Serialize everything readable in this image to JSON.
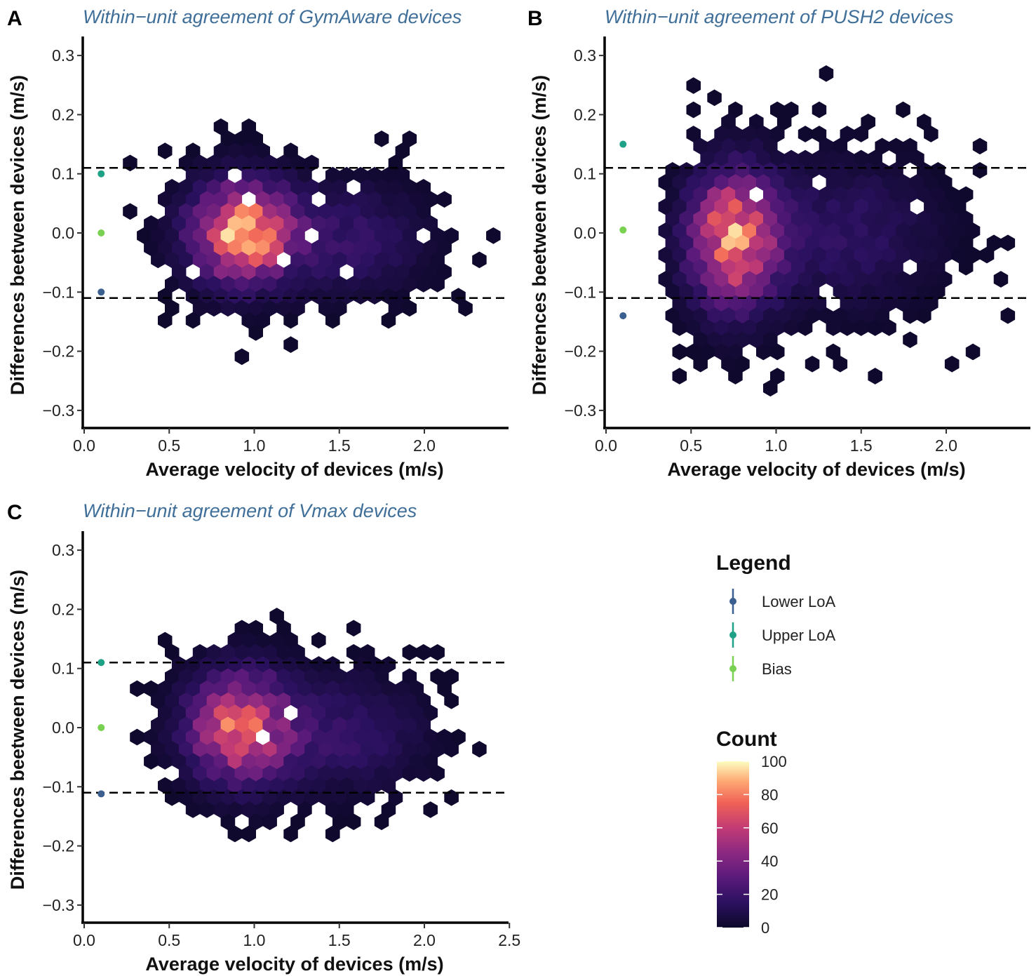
{
  "colors": {
    "title": "#3f6f99",
    "lower_loa": "#3b5f8f",
    "upper_loa": "#1fa187",
    "bias": "#79d151",
    "viridis_low": "#0d0829",
    "magma_high": "#fcfdbf"
  },
  "chart_data": [
    {
      "id": "A",
      "type": "heatmap",
      "subtype": "hexbin",
      "title": "Within−unit agreement of GymAware devices",
      "xlabel": "Average velocity of devices (m/s)",
      "ylabel": "Differences beetween devices (m/s)",
      "xlim": [
        0.0,
        2.5
      ],
      "ylim": [
        -0.32,
        0.32
      ],
      "x_ticks": [
        "0.0",
        "0.5",
        "1.0",
        "1.5",
        "2.0"
      ],
      "y_ticks": [
        "−0.3",
        "−0.2",
        "−0.1",
        "0.0",
        "0.1",
        "0.2",
        "0.3"
      ],
      "x_tick_values": [
        0.0,
        0.5,
        1.0,
        1.5,
        2.0
      ],
      "y_tick_values": [
        -0.3,
        -0.2,
        -0.1,
        0.0,
        0.1,
        0.2,
        0.3
      ],
      "dashed_lines": [
        0.11,
        -0.11
      ],
      "points": {
        "lower_loa": -0.1,
        "upper_loa": 0.1,
        "bias": 0.0,
        "x": 0.1
      },
      "density": {
        "x_min": 0.27,
        "x_max": 2.42,
        "y_min": -0.22,
        "y_max": 0.2,
        "clusters": [
          {
            "x": 0.93,
            "y": 0.0,
            "sx": 0.2,
            "sy": 0.055,
            "peak": 85
          },
          {
            "x": 1.55,
            "y": -0.01,
            "sx": 0.3,
            "sy": 0.06,
            "peak": 18
          }
        ]
      }
    },
    {
      "id": "B",
      "type": "heatmap",
      "subtype": "hexbin",
      "title": "Within−unit agreement of PUSH2 devices",
      "xlabel": "Average velocity of devices (m/s)",
      "ylabel": "Differences beetween devices (m/s)",
      "xlim": [
        0.0,
        2.5
      ],
      "ylim": [
        -0.32,
        0.32
      ],
      "x_ticks": [
        "0.0",
        "0.5",
        "1.0",
        "1.5",
        "2.0"
      ],
      "y_ticks": [
        "−0.3",
        "−0.2",
        "−0.1",
        "0.0",
        "0.1",
        "0.2",
        "0.3"
      ],
      "x_tick_values": [
        0.0,
        0.5,
        1.0,
        1.5,
        2.0
      ],
      "y_tick_values": [
        -0.3,
        -0.2,
        -0.1,
        0.0,
        0.1,
        0.2,
        0.3
      ],
      "dashed_lines": [
        0.11,
        -0.11
      ],
      "points": {
        "lower_loa": -0.14,
        "upper_loa": 0.15,
        "bias": 0.005,
        "x": 0.1
      },
      "density": {
        "x_min": 0.35,
        "x_max": 2.42,
        "y_min": -0.27,
        "y_max": 0.29,
        "clusters": [
          {
            "x": 0.75,
            "y": -0.01,
            "sx": 0.17,
            "sy": 0.075,
            "peak": 78
          },
          {
            "x": 1.4,
            "y": 0.0,
            "sx": 0.35,
            "sy": 0.08,
            "peak": 16
          }
        ]
      }
    },
    {
      "id": "C",
      "type": "heatmap",
      "subtype": "hexbin",
      "title": "Within−unit agreement of Vmax devices",
      "xlabel": "Average velocity of devices (m/s)",
      "ylabel": "Differences beetween devices (m/s)",
      "xlim": [
        0.0,
        2.5
      ],
      "ylim": [
        -0.32,
        0.32
      ],
      "x_ticks": [
        "0.0",
        "0.5",
        "1.0",
        "1.5",
        "2.0",
        "2.5"
      ],
      "y_ticks": [
        "−0.3",
        "−0.2",
        "−0.1",
        "0.0",
        "0.1",
        "0.2",
        "0.3"
      ],
      "x_tick_values": [
        0.0,
        0.5,
        1.0,
        1.5,
        2.0,
        2.5
      ],
      "y_tick_values": [
        -0.3,
        -0.2,
        -0.1,
        0.0,
        0.1,
        0.2,
        0.3
      ],
      "dashed_lines": [
        0.11,
        -0.11
      ],
      "points": {
        "lower_loa": -0.112,
        "upper_loa": 0.11,
        "bias": 0.0,
        "x": 0.1
      },
      "density": {
        "x_min": 0.27,
        "x_max": 2.42,
        "y_min": -0.24,
        "y_max": 0.25,
        "clusters": [
          {
            "x": 0.92,
            "y": 0.0,
            "sx": 0.2,
            "sy": 0.06,
            "peak": 75
          },
          {
            "x": 1.55,
            "y": -0.01,
            "sx": 0.3,
            "sy": 0.065,
            "peak": 17
          }
        ]
      }
    }
  ],
  "legend": {
    "title": "Legend",
    "items": [
      {
        "label": "Lower LoA",
        "color": "#3b5f8f"
      },
      {
        "label": "Upper LoA",
        "color": "#1fa187"
      },
      {
        "label": "Bias",
        "color": "#79d151"
      }
    ]
  },
  "colorbar": {
    "title": "Count",
    "min": 0,
    "max": 100,
    "ticks": [
      "100",
      "80",
      "60",
      "40",
      "20",
      "0"
    ]
  }
}
